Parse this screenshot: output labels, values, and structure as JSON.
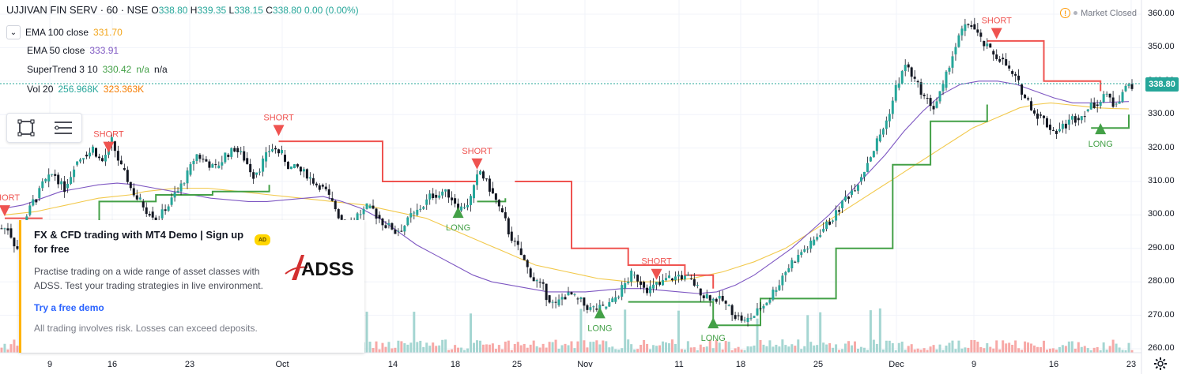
{
  "symbol": {
    "title": "UJJIVAN FIN SERV · 60 · NSE",
    "ohlc": [
      {
        "k": "O",
        "v": "338.80"
      },
      {
        "k": "H",
        "v": "339.35"
      },
      {
        "k": "L",
        "v": "338.15"
      },
      {
        "k": "C",
        "v": "338.80"
      },
      {
        "k": "",
        "v": "0.00 (0.00%)"
      }
    ]
  },
  "indicators": [
    {
      "name": "EMA 100 close",
      "values": [
        "331.70"
      ],
      "colors": [
        "#f2a51a"
      ]
    },
    {
      "name": "EMA 50 close",
      "values": [
        "333.91"
      ],
      "colors": [
        "#7e57c2"
      ]
    },
    {
      "name": "SuperTrend 3 10",
      "values": [
        "330.42",
        "n/a",
        "n/a"
      ],
      "colors": [
        "#43a047",
        "#43a047",
        "#131722"
      ]
    },
    {
      "name": "Vol 20",
      "values": [
        "256.968K",
        "323.363K"
      ],
      "colors": [
        "#26a69a",
        "#f57c00"
      ]
    }
  ],
  "market_status": "Market Closed",
  "last_price": "338.80",
  "price_axis": [
    "360.00",
    "350.00",
    "340.00",
    "330.00",
    "320.00",
    "310.00",
    "300.00",
    "290.00",
    "280.00",
    "270.00",
    "260.00"
  ],
  "time_axis": [
    "9",
    "16",
    "23",
    "Oct",
    "14",
    "18",
    "25",
    "Nov",
    "11",
    "18",
    "25",
    "Dec",
    "9",
    "16",
    "23"
  ],
  "signals": {
    "short": "SHORT",
    "long": "LONG"
  },
  "ad": {
    "badge": "AD",
    "title": "FX & CFD trading with MT4 Demo | Sign up for free",
    "body": "Practise trading on a wide range of asset classes with ADSS. Test your trading strategies in live environment.",
    "link": "Try a free demo",
    "disclaimer": "All trading involves risk. Losses can exceed deposits.",
    "logo_text": "ADSS"
  },
  "chart_data": {
    "type": "candlestick",
    "ylim": [
      258,
      362
    ],
    "closes": [
      296,
      290,
      300,
      305,
      310,
      312,
      308,
      315,
      318,
      320,
      316,
      322,
      314,
      308,
      304,
      301,
      299,
      303,
      307,
      312,
      318,
      316,
      314,
      318,
      320,
      317,
      312,
      316,
      320,
      318,
      314,
      313,
      311,
      309,
      305,
      300,
      297,
      300,
      302,
      300,
      297,
      295,
      297,
      300,
      303,
      306,
      307,
      305,
      302,
      305,
      313,
      308,
      302,
      295,
      290,
      284,
      280,
      276,
      273,
      276,
      275,
      273,
      272,
      272,
      274,
      278,
      282,
      280,
      278,
      279,
      281,
      282,
      281,
      278,
      276,
      275,
      273,
      270,
      268,
      270,
      273,
      277,
      282,
      286,
      289,
      291,
      295,
      298,
      302,
      306,
      310,
      316,
      322,
      328,
      338,
      345,
      340,
      335,
      332,
      338,
      348,
      355,
      357,
      352,
      349,
      347,
      343,
      339,
      334,
      330,
      327,
      325,
      327,
      329,
      331,
      333,
      336,
      333,
      337,
      339
    ],
    "ema100": [
      300,
      300.5,
      301,
      302,
      303,
      304,
      305,
      305.5,
      306,
      307,
      307.5,
      308,
      308,
      308,
      307.5,
      307,
      306.5,
      306,
      305.5,
      305,
      304.5,
      304,
      303.5,
      303,
      302,
      301,
      300,
      299,
      297,
      295,
      293,
      291,
      289,
      287,
      285,
      284,
      283,
      282,
      281,
      280.5,
      280,
      280,
      280,
      280.5,
      281,
      282,
      283,
      284.5,
      286,
      288,
      290,
      293,
      296,
      299,
      302,
      305,
      308,
      311,
      314,
      317,
      320,
      323,
      326,
      328,
      330,
      332,
      333,
      333.5,
      333,
      332.5,
      332,
      331.8,
      331.7
    ],
    "ema50": [
      302,
      303,
      305,
      307,
      308,
      309,
      309.5,
      309,
      308,
      307,
      306,
      305,
      304.5,
      304,
      304,
      304.5,
      305,
      305.5,
      304,
      302,
      299,
      295,
      291,
      288,
      285,
      282,
      280,
      279,
      278,
      277,
      277,
      277,
      277.5,
      278,
      278,
      277.5,
      277,
      276.5,
      277,
      279,
      282,
      286,
      290,
      295,
      300,
      306,
      312,
      318,
      325,
      331,
      336,
      339,
      340,
      340,
      339,
      337,
      335,
      333.5,
      333.5,
      333.7,
      333.9
    ],
    "supertrend": {
      "segments": [
        {
          "dir": "short",
          "points": [
            [
              0,
              299
            ],
            [
              4,
              299
            ]
          ]
        },
        {
          "dir": "long",
          "points": [
            [
              5,
              296
            ],
            [
              10,
              304
            ],
            [
              16,
              306
            ],
            [
              22,
              307
            ],
            [
              28,
              309
            ]
          ]
        },
        {
          "dir": "short",
          "points": [
            [
              29,
              322
            ],
            [
              36,
              322
            ],
            [
              40,
              310
            ],
            [
              50,
              310
            ]
          ]
        },
        {
          "dir": "long",
          "points": [
            [
              50,
              304
            ],
            [
              53,
              305
            ]
          ]
        },
        {
          "dir": "short",
          "points": [
            [
              54,
              310
            ],
            [
              60,
              290
            ],
            [
              66,
              285
            ],
            [
              72,
              282
            ],
            [
              75,
              278
            ]
          ]
        },
        {
          "dir": "long",
          "points": [
            [
              66,
              274
            ],
            [
              72,
              274
            ],
            [
              75,
              267
            ],
            [
              80,
              275
            ],
            [
              88,
              290
            ],
            [
              94,
              315
            ],
            [
              98,
              328
            ],
            [
              104,
              333
            ]
          ]
        },
        {
          "dir": "short",
          "points": [
            [
              104,
              352
            ],
            [
              110,
              340
            ],
            [
              116,
              337
            ]
          ]
        },
        {
          "dir": "long",
          "points": [
            [
              115,
              326
            ],
            [
              119,
              330
            ]
          ]
        }
      ]
    },
    "signals": [
      {
        "type": "short",
        "index": 0,
        "price": 301
      },
      {
        "type": "short",
        "index": 11,
        "price": 320
      },
      {
        "type": "short",
        "index": 29,
        "price": 325
      },
      {
        "type": "short",
        "index": 50,
        "price": 315
      },
      {
        "type": "long",
        "index": 48,
        "price": 301
      },
      {
        "type": "short",
        "index": 69,
        "price": 282
      },
      {
        "type": "long",
        "index": 63,
        "price": 271
      },
      {
        "type": "long",
        "index": 75,
        "price": 268
      },
      {
        "type": "short",
        "index": 105,
        "price": 354
      },
      {
        "type": "long",
        "index": 116,
        "price": 326
      }
    ],
    "grid": true,
    "legend": "top-left"
  }
}
